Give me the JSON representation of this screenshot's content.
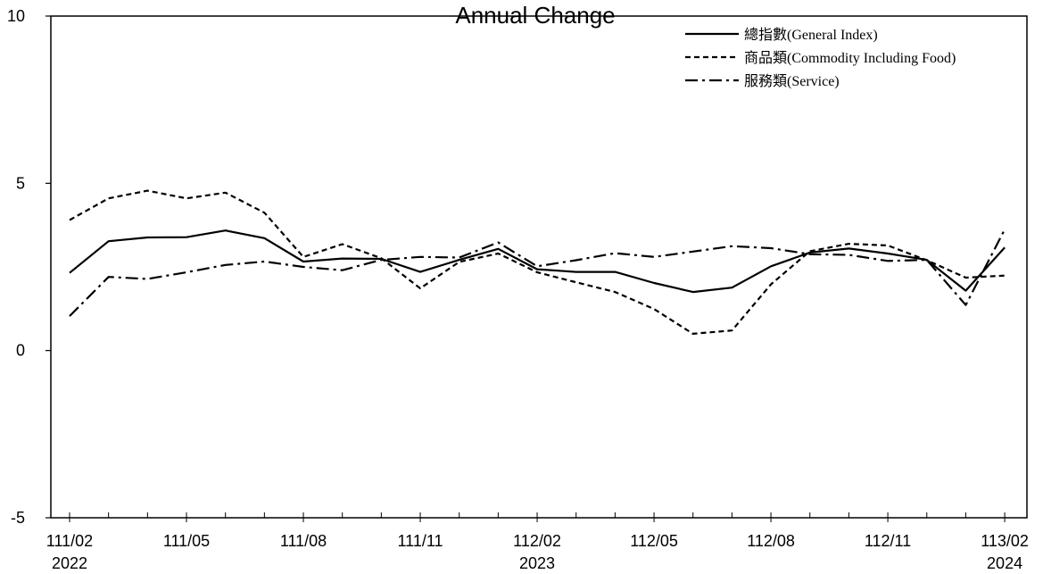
{
  "chart_data": {
    "type": "line",
    "title": "Annual Change",
    "xlabel": "",
    "ylabel": "",
    "ylim": [
      -5,
      10
    ],
    "yticks": [
      -5,
      0,
      5,
      10
    ],
    "x_tick_labels": [
      {
        "label": "111/02",
        "year": "2022"
      },
      {
        "label": "111/05",
        "year": ""
      },
      {
        "label": "111/08",
        "year": ""
      },
      {
        "label": "111/11",
        "year": ""
      },
      {
        "label": "112/02",
        "year": "2023"
      },
      {
        "label": "112/05",
        "year": ""
      },
      {
        "label": "112/08",
        "year": ""
      },
      {
        "label": "112/11",
        "year": ""
      },
      {
        "label": "113/02",
        "year": "2024"
      }
    ],
    "categories": [
      "111/02",
      "111/03",
      "111/04",
      "111/05",
      "111/06",
      "111/07",
      "111/08",
      "111/09",
      "111/10",
      "111/11",
      "111/12",
      "112/01",
      "112/02",
      "112/03",
      "112/04",
      "112/05",
      "112/06",
      "112/07",
      "112/08",
      "112/09",
      "112/10",
      "112/11",
      "112/12",
      "113/01",
      "113/02"
    ],
    "series": [
      {
        "name": "總指數(General Index)",
        "style": "solid",
        "values": [
          2.32,
          3.27,
          3.38,
          3.39,
          3.59,
          3.36,
          2.66,
          2.75,
          2.74,
          2.35,
          2.71,
          3.04,
          2.43,
          2.35,
          2.35,
          2.02,
          1.75,
          1.88,
          2.52,
          2.93,
          3.05,
          2.9,
          2.71,
          1.79,
          3.08
        ]
      },
      {
        "name": "商品類(Commodity Including Food)",
        "style": "dashed",
        "values": [
          3.9,
          4.55,
          4.78,
          4.55,
          4.72,
          4.12,
          2.8,
          3.18,
          2.76,
          1.86,
          2.65,
          2.9,
          2.34,
          2.04,
          1.75,
          1.24,
          0.5,
          0.6,
          1.98,
          2.97,
          3.19,
          3.14,
          2.7,
          2.18,
          2.24
        ]
      },
      {
        "name": "服務類(Service)",
        "style": "dashdot",
        "values": [
          1.03,
          2.2,
          2.14,
          2.34,
          2.56,
          2.66,
          2.5,
          2.4,
          2.71,
          2.8,
          2.78,
          3.23,
          2.52,
          2.7,
          2.91,
          2.8,
          2.96,
          3.12,
          3.06,
          2.88,
          2.86,
          2.68,
          2.71,
          1.36,
          3.62
        ]
      }
    ],
    "grid": false,
    "legend_position": "top-right"
  }
}
